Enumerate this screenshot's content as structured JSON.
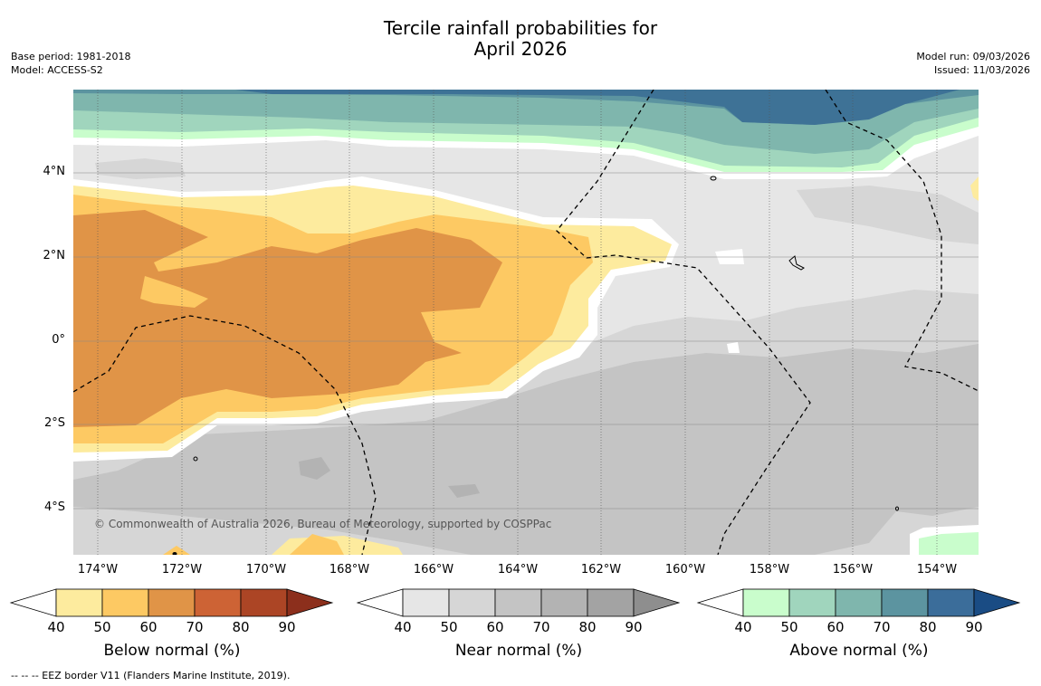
{
  "title": {
    "line1": "Tercile rainfall probabilities for",
    "line2": "April 2026"
  },
  "meta_left": {
    "base_period": "Base period: 1981-2018",
    "model": "Model: ACCESS-S2"
  },
  "meta_right": {
    "model_run": "Model run: 09/03/2026",
    "issued": "Issued: 11/03/2026"
  },
  "map": {
    "lon_range": [
      -174.6,
      -153.0
    ],
    "lat_range": [
      -5.0,
      6.0
    ],
    "x_ticks": [
      "174°W",
      "172°W",
      "170°W",
      "168°W",
      "166°W",
      "164°W",
      "162°W",
      "160°W",
      "158°W",
      "156°W",
      "154°W"
    ],
    "y_ticks": [
      "4°N",
      "2°N",
      "0°",
      "2°S",
      "4°S"
    ],
    "copyright": "© Commonwealth of Australia 2026, Bureau of Meteorology, supported by COSPPac"
  },
  "colorbars": [
    {
      "label": "Below normal (%)",
      "ticks": [
        "40",
        "50",
        "60",
        "70",
        "80",
        "90"
      ],
      "colors": [
        "#ffffff",
        "#fdeb9e",
        "#fdc963",
        "#e09447",
        "#cd6335",
        "#ac4525",
        "#8c2f1c"
      ]
    },
    {
      "label": "Near normal (%)",
      "ticks": [
        "40",
        "50",
        "60",
        "70",
        "80",
        "90"
      ],
      "colors": [
        "#ffffff",
        "#e6e6e6",
        "#d6d6d6",
        "#c4c4c4",
        "#b3b3b3",
        "#a3a3a3",
        "#8e8e8e"
      ]
    },
    {
      "label": "Above normal (%)",
      "ticks": [
        "40",
        "50",
        "60",
        "70",
        "80",
        "90"
      ],
      "colors": [
        "#ffffff",
        "#c9fdcc",
        "#a0d5bd",
        "#7fb6ad",
        "#5c94a0",
        "#3b6d9a",
        "#1a4c84"
      ]
    }
  ],
  "footer": "-- -- -- EEZ border V11 (Flanders Marine Institute, 2019).",
  "colors": {
    "below_50": "#fdeb9e",
    "below_60": "#fdc963",
    "below_70": "#e09447",
    "near_40": "#e6e6e6",
    "near_50": "#d6d6d6",
    "near_60": "#c4c4c4",
    "near_70": "#b3b3b3",
    "above_40": "#c9fdcc",
    "above_50": "#a0d5bd",
    "above_60": "#7fb6ad",
    "above_70": "#5c94a0",
    "above_80": "#3b7098"
  }
}
